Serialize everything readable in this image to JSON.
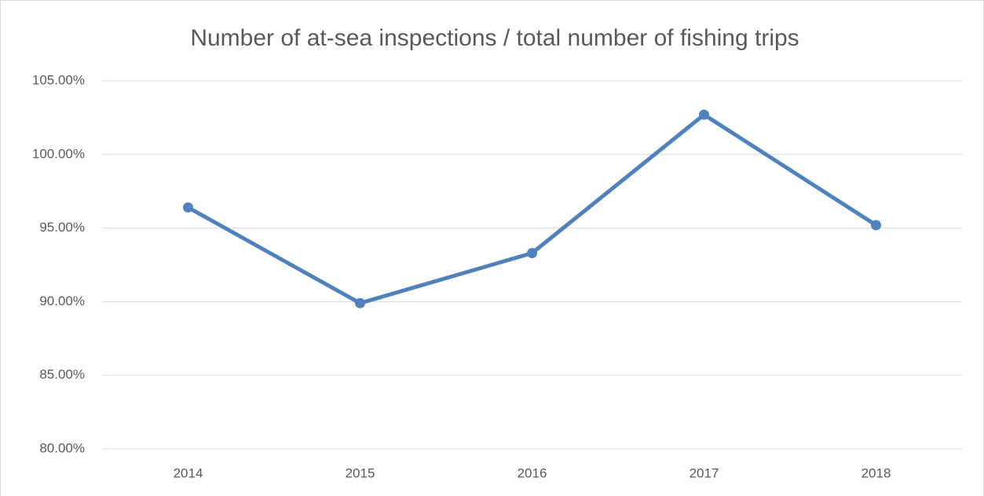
{
  "chart_data": {
    "type": "line",
    "title": "Number of at-sea inspections / total number of fishing trips",
    "categories": [
      "2014",
      "2015",
      "2016",
      "2017",
      "2018"
    ],
    "series": [
      {
        "name": "Number of at-sea inspections / total number of fishing trips",
        "color": "#4f81bd",
        "values": [
          96.4,
          89.9,
          93.3,
          102.7,
          95.2
        ]
      }
    ],
    "ylim": [
      80,
      105
    ],
    "yticks": [
      {
        "value": 80,
        "label": "80.00%"
      },
      {
        "value": 85,
        "label": "85.00%"
      },
      {
        "value": 90,
        "label": "90.00%"
      },
      {
        "value": 95,
        "label": "95.00%"
      },
      {
        "value": 100,
        "label": "100.00%"
      },
      {
        "value": 105,
        "label": "105.00%"
      }
    ],
    "grid": true
  }
}
